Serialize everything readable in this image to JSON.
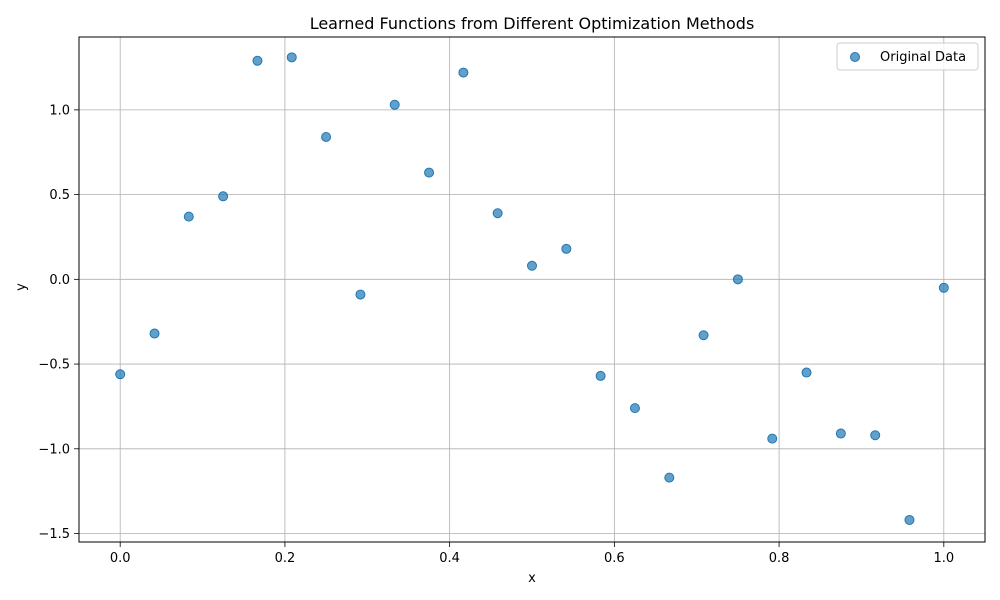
{
  "chart_data": {
    "type": "scatter",
    "title": "Learned Functions from Different Optimization Methods",
    "xlabel": "x",
    "ylabel": "y",
    "xlim": [
      -0.05,
      1.05
    ],
    "ylim": [
      -1.55,
      1.43
    ],
    "xticks": [
      0.0,
      0.2,
      0.4,
      0.6,
      0.8,
      1.0
    ],
    "xtick_labels": [
      "0.0",
      "0.2",
      "0.4",
      "0.6",
      "0.8",
      "1.0"
    ],
    "yticks": [
      -1.5,
      -1.0,
      -0.5,
      0.0,
      0.5,
      1.0
    ],
    "ytick_labels": [
      "−1.5",
      "−1.0",
      "−0.5",
      "0.0",
      "0.5",
      "1.0"
    ],
    "grid": true,
    "legend": "top-right",
    "series": [
      {
        "name": "Original Data",
        "color": "#1f77b4",
        "x": [
          0.0,
          0.0417,
          0.0833,
          0.125,
          0.1667,
          0.2083,
          0.25,
          0.2917,
          0.3333,
          0.375,
          0.4167,
          0.4583,
          0.5,
          0.5417,
          0.5833,
          0.625,
          0.6667,
          0.7083,
          0.75,
          0.7917,
          0.8333,
          0.875,
          0.9167,
          0.9583,
          1.0
        ],
        "y": [
          -0.56,
          -0.32,
          0.37,
          0.49,
          1.29,
          1.31,
          0.84,
          -0.09,
          1.03,
          0.63,
          1.22,
          0.39,
          0.08,
          0.18,
          -0.57,
          -0.76,
          -1.17,
          -0.33,
          0.0,
          -0.94,
          -0.55,
          -0.91,
          -0.92,
          -1.42,
          -0.05
        ]
      }
    ]
  }
}
